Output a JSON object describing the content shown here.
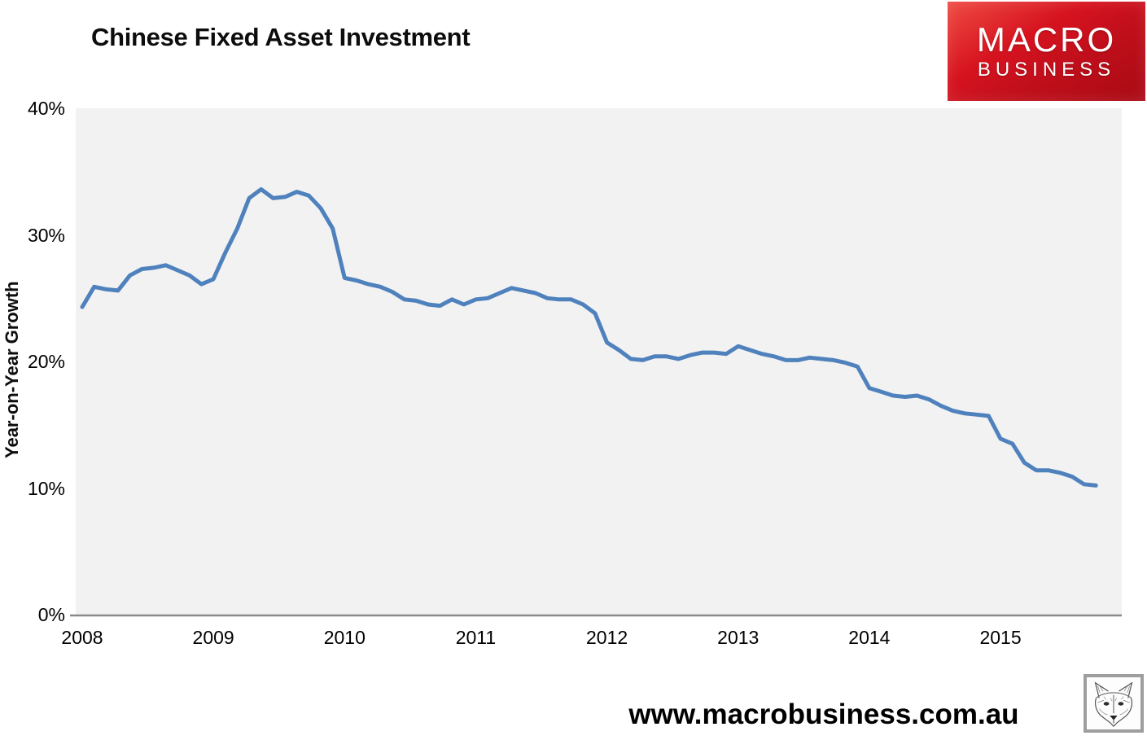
{
  "page": {
    "background": "#ffffff",
    "footer_url": "www.macrobusiness.com.au"
  },
  "header": {
    "title": "Chinese Fixed Asset Investment"
  },
  "logo": {
    "line1": "MACRO",
    "line2": "BUSINESS",
    "bg_color_top": "#e8322e",
    "bg_color_bottom": "#a90a14",
    "text_color": "#ffffff"
  },
  "watermark": {
    "icon": "wolf-sketch-icon",
    "border_color": "#9e9e9e"
  },
  "chart_data": {
    "type": "line",
    "title": "Chinese Fixed Asset Investment",
    "xlabel": "",
    "ylabel": "Year-on-Year Growth",
    "ylim": [
      0,
      40
    ],
    "y_tick_values": [
      0,
      10,
      20,
      30,
      40
    ],
    "y_tick_labels": [
      "0%",
      "10%",
      "20%",
      "30%",
      "40%"
    ],
    "x_tick_labels": [
      "2008",
      "2009",
      "2010",
      "2011",
      "2012",
      "2013",
      "2014",
      "2015"
    ],
    "grid": false,
    "legend": "none",
    "plot_background": "#f2f2f2",
    "axis_line_color": "#898989",
    "series": [
      {
        "name": "China fixed asset investment, year-on-year growth (%)",
        "color": "#4f81bd",
        "line_width": 5,
        "x_start": "2008-02",
        "x_end": "2015-10",
        "x_note": "monthly points, Feb to Dec each year (Jan not reported separately)",
        "values": [
          24.3,
          25.9,
          25.7,
          25.6,
          26.8,
          27.3,
          27.4,
          27.6,
          27.2,
          26.8,
          26.1,
          26.5,
          28.6,
          30.5,
          32.9,
          33.6,
          32.9,
          33.0,
          33.4,
          33.1,
          32.1,
          30.5,
          26.6,
          26.4,
          26.1,
          25.9,
          25.5,
          24.9,
          24.8,
          24.5,
          24.4,
          24.9,
          24.5,
          24.9,
          25.0,
          25.4,
          25.8,
          25.6,
          25.4,
          25.0,
          24.9,
          24.9,
          24.5,
          23.8,
          21.5,
          20.9,
          20.2,
          20.1,
          20.4,
          20.4,
          20.2,
          20.5,
          20.7,
          20.7,
          20.6,
          21.2,
          20.9,
          20.6,
          20.4,
          20.1,
          20.1,
          20.3,
          20.2,
          20.1,
          19.9,
          19.6,
          17.9,
          17.6,
          17.3,
          17.2,
          17.3,
          17.0,
          16.5,
          16.1,
          15.9,
          15.8,
          15.7,
          13.9,
          13.5,
          12.0,
          11.4,
          11.4,
          11.2,
          10.9,
          10.3,
          10.2
        ]
      }
    ]
  }
}
